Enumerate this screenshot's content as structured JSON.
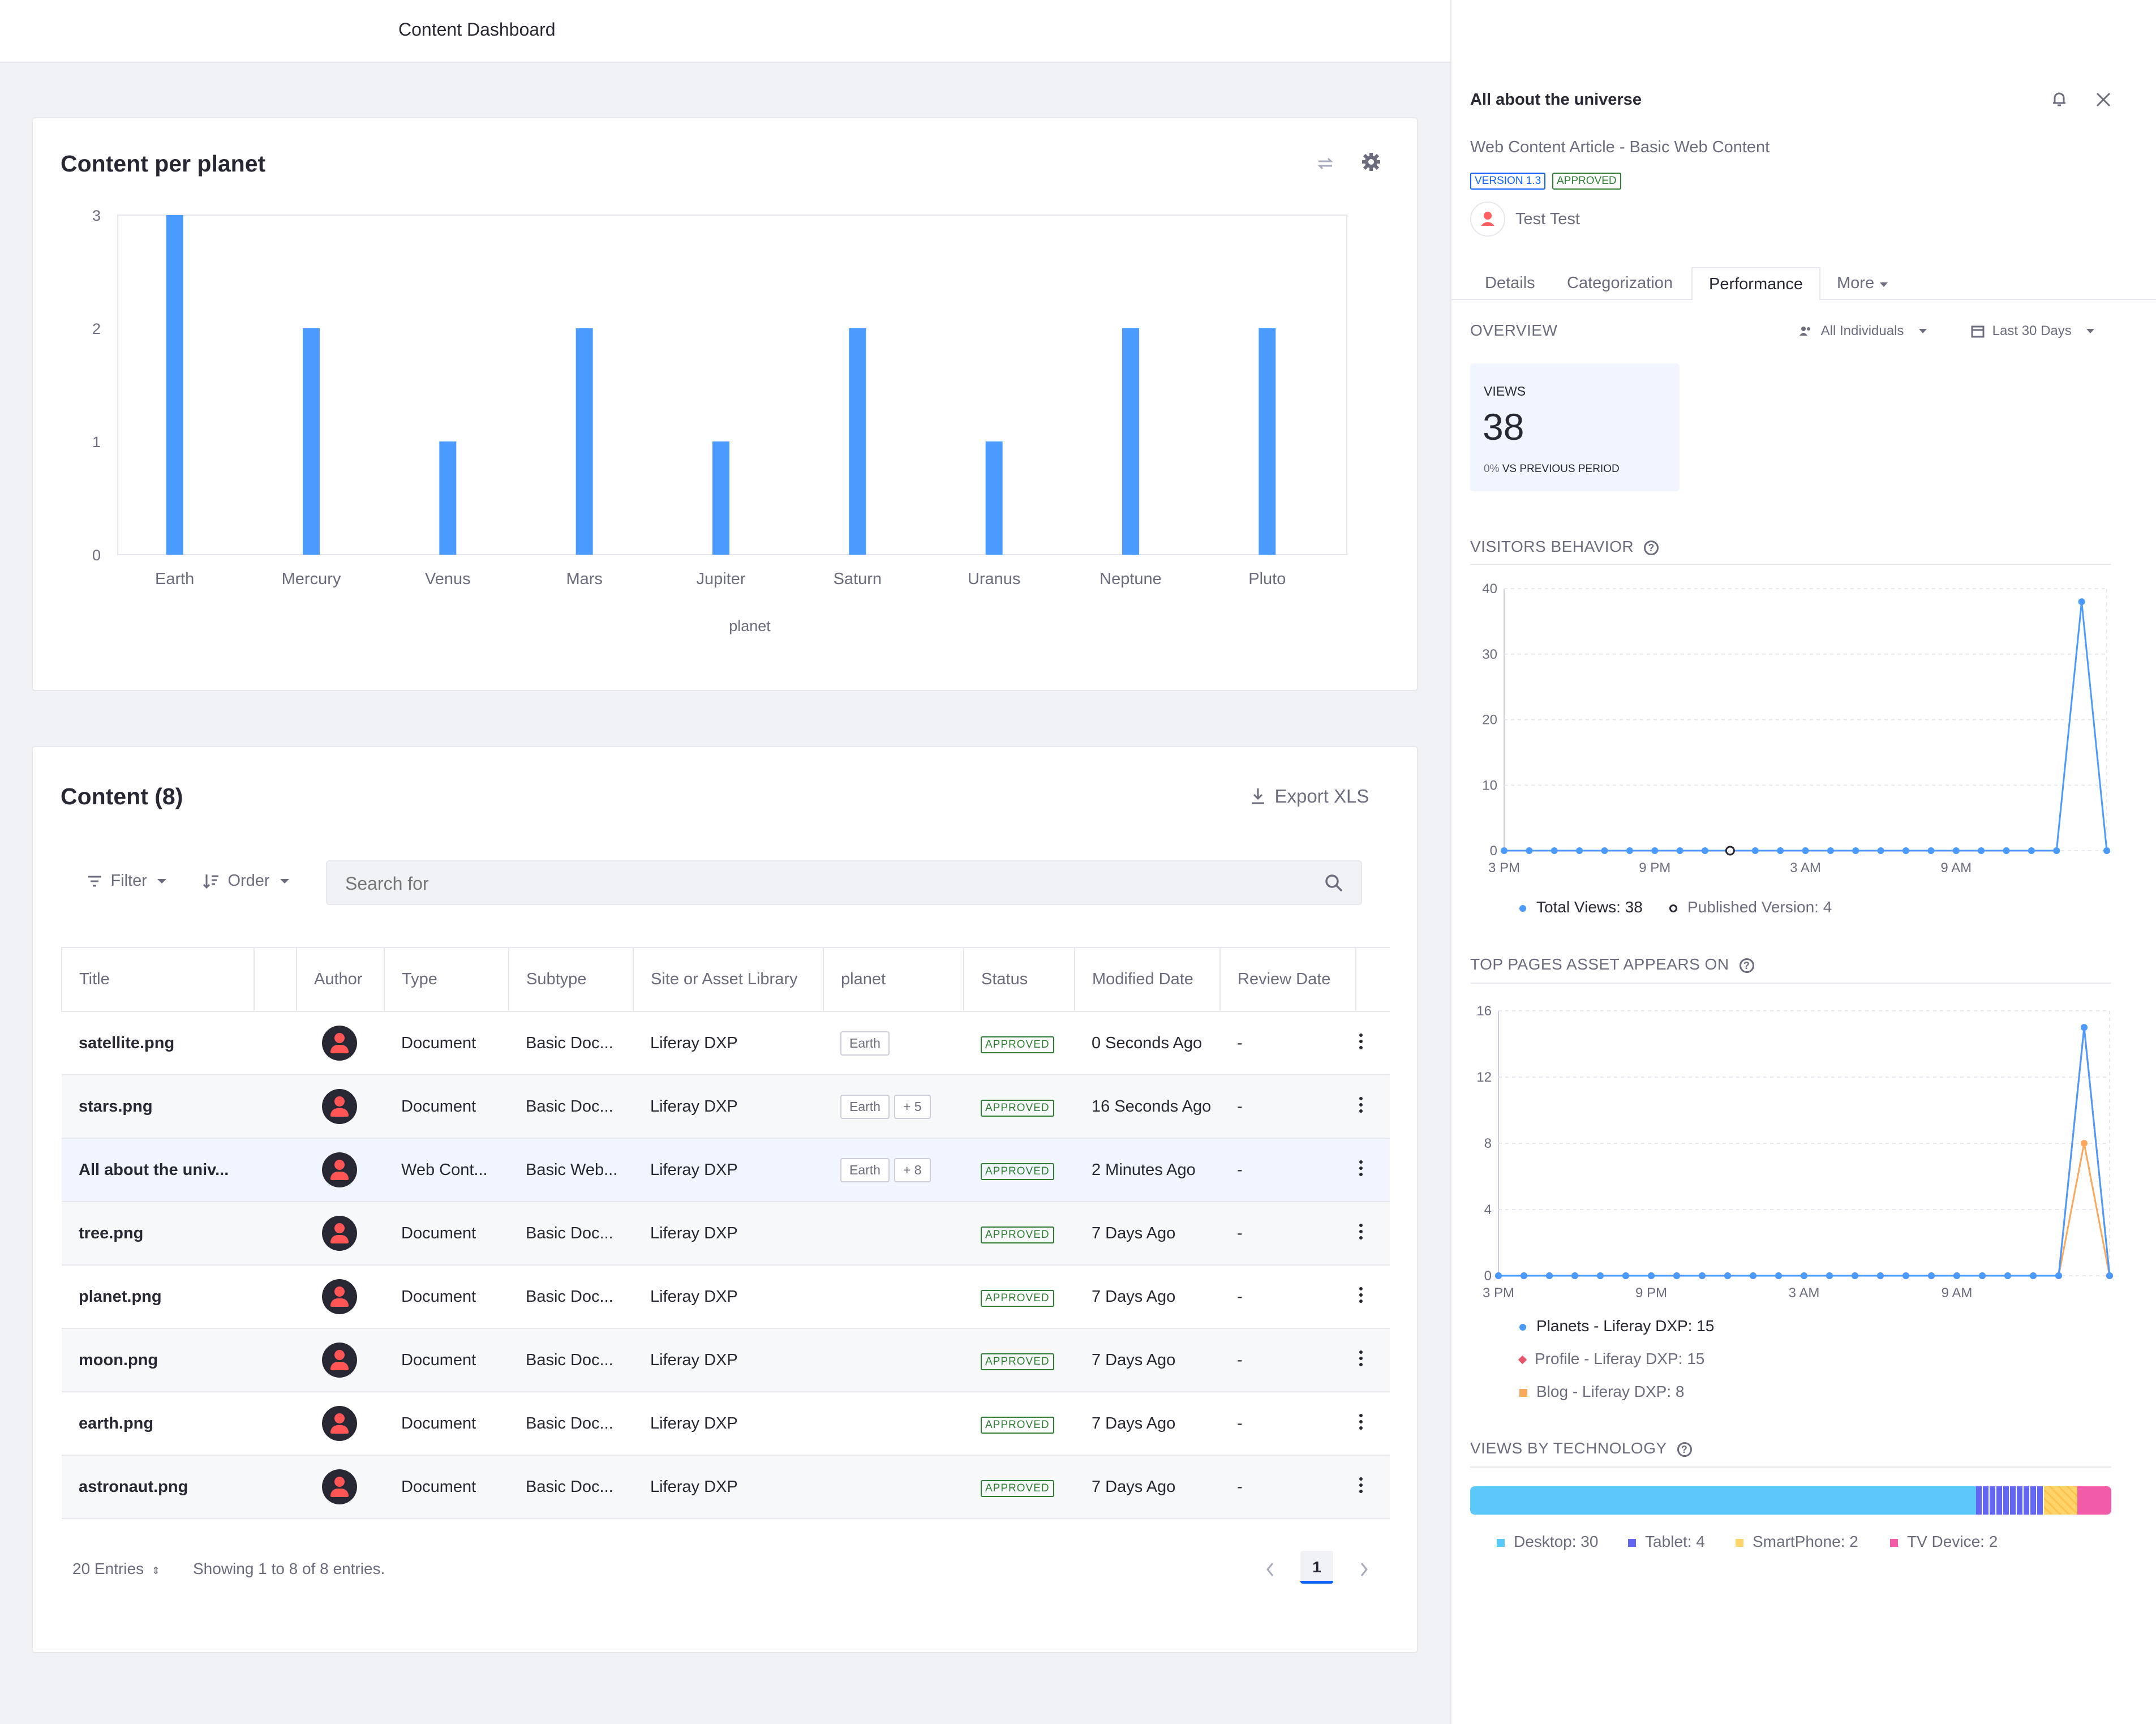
{
  "header": {
    "title": "Content Dashboard"
  },
  "chart_card": {
    "title": "Content per planet"
  },
  "chart_data": [
    {
      "type": "bar",
      "title": "Content per planet",
      "categories": [
        "Earth",
        "Mercury",
        "Venus",
        "Mars",
        "Jupiter",
        "Saturn",
        "Uranus",
        "Neptune",
        "Pluto"
      ],
      "values": [
        3,
        2,
        1,
        2,
        1,
        2,
        1,
        2,
        2
      ],
      "xlabel": "planet",
      "ylabel": "",
      "ylim": [
        0,
        3
      ],
      "yticks": [
        "3",
        "2",
        "1",
        "0"
      ],
      "color": "#4b9bff",
      "grid": false
    },
    {
      "type": "line",
      "title": "VISITORS BEHAVIOR",
      "x_ticks": [
        "3 PM",
        "9 PM",
        "3 AM",
        "9 AM"
      ],
      "yticks": [
        "40",
        "30",
        "20",
        "10",
        "0"
      ],
      "ylim": [
        0,
        40
      ],
      "series": [
        {
          "name": "Total Views: 38",
          "values": [
            0,
            0,
            0,
            0,
            0,
            0,
            0,
            0,
            0,
            0,
            0,
            0,
            0,
            0,
            0,
            0,
            0,
            0,
            0,
            0,
            0,
            0,
            0,
            38,
            0
          ],
          "color": "#4b9bff"
        }
      ],
      "published_version_index": 9,
      "legend": [
        "Total Views: 38",
        "Published Version: 4"
      ]
    },
    {
      "type": "line",
      "title": "TOP PAGES ASSET APPEARS ON",
      "x_ticks": [
        "3 PM",
        "9 PM",
        "3 AM",
        "9 AM"
      ],
      "yticks": [
        "16",
        "12",
        "8",
        "4",
        "0"
      ],
      "ylim": [
        0,
        16
      ],
      "series": [
        {
          "name": "Planets - Liferay DXP: 15",
          "values": [
            0,
            0,
            0,
            0,
            0,
            0,
            0,
            0,
            0,
            0,
            0,
            0,
            0,
            0,
            0,
            0,
            0,
            0,
            0,
            0,
            0,
            0,
            0,
            15,
            0
          ],
          "color": "#4b9bff"
        },
        {
          "name": "Profile - Liferay DXP: 15",
          "values": [
            0,
            0,
            0,
            0,
            0,
            0,
            0,
            0,
            0,
            0,
            0,
            0,
            0,
            0,
            0,
            0,
            0,
            0,
            0,
            0,
            0,
            0,
            0,
            15,
            0
          ],
          "color": "#e5566b"
        },
        {
          "name": "Blog - Liferay DXP: 8",
          "values": [
            0,
            0,
            0,
            0,
            0,
            0,
            0,
            0,
            0,
            0,
            0,
            0,
            0,
            0,
            0,
            0,
            0,
            0,
            0,
            0,
            0,
            0,
            0,
            8,
            0
          ],
          "color": "#f9a85d"
        }
      ]
    },
    {
      "type": "bar",
      "title": "VIEWS BY TECHNOLOGY",
      "categories": [
        "Desktop",
        "Tablet",
        "SmartPhone",
        "TV Device"
      ],
      "values": [
        30,
        4,
        2,
        2
      ],
      "colors": [
        "#5ac8fa",
        "#6366f1",
        "#ffd56b",
        "#f25ba8"
      ]
    }
  ],
  "content_card": {
    "title": "Content (8)",
    "export_label": "Export XLS",
    "filter_label": "Filter",
    "order_label": "Order",
    "search_placeholder": "Search for",
    "columns": [
      "Title",
      "",
      "Author",
      "Type",
      "Subtype",
      "Site or Asset Library",
      "planet",
      "Status",
      "Modified Date",
      "Review Date"
    ],
    "rows": [
      {
        "title": "satellite.png",
        "type": "Document",
        "subtype": "Basic Doc...",
        "site": "Liferay DXP",
        "tag": "Earth",
        "more": "",
        "status": "APPROVED",
        "modified": "0 Seconds Ago",
        "review": "-"
      },
      {
        "title": "stars.png",
        "type": "Document",
        "subtype": "Basic Doc...",
        "site": "Liferay DXP",
        "tag": "Earth",
        "more": "+ 5",
        "status": "APPROVED",
        "modified": "16 Seconds Ago",
        "review": "-"
      },
      {
        "title": "All about the univ...",
        "type": "Web Cont...",
        "subtype": "Basic Web...",
        "site": "Liferay DXP",
        "tag": "Earth",
        "more": "+ 8",
        "status": "APPROVED",
        "modified": "2 Minutes Ago",
        "review": "-"
      },
      {
        "title": "tree.png",
        "type": "Document",
        "subtype": "Basic Doc...",
        "site": "Liferay DXP",
        "tag": "",
        "more": "",
        "status": "APPROVED",
        "modified": "7 Days Ago",
        "review": "-"
      },
      {
        "title": "planet.png",
        "type": "Document",
        "subtype": "Basic Doc...",
        "site": "Liferay DXP",
        "tag": "",
        "more": "",
        "status": "APPROVED",
        "modified": "7 Days Ago",
        "review": "-"
      },
      {
        "title": "moon.png",
        "type": "Document",
        "subtype": "Basic Doc...",
        "site": "Liferay DXP",
        "tag": "",
        "more": "",
        "status": "APPROVED",
        "modified": "7 Days Ago",
        "review": "-"
      },
      {
        "title": "earth.png",
        "type": "Document",
        "subtype": "Basic Doc...",
        "site": "Liferay DXP",
        "tag": "",
        "more": "",
        "status": "APPROVED",
        "modified": "7 Days Ago",
        "review": "-"
      },
      {
        "title": "astronaut.png",
        "type": "Document",
        "subtype": "Basic Doc...",
        "site": "Liferay DXP",
        "tag": "",
        "more": "",
        "status": "APPROVED",
        "modified": "7 Days Ago",
        "review": "-"
      }
    ],
    "entries_label": "20 Entries",
    "showing_label": "Showing 1 to 8 of 8 entries.",
    "page": "1"
  },
  "sidebar": {
    "title": "All about the universe",
    "subtitle": "Web Content Article - Basic Web Content",
    "version_badge": "VERSION 1.3",
    "status_badge": "APPROVED",
    "author": "Test Test",
    "tabs": [
      "Details",
      "Categorization",
      "Performance",
      "More"
    ],
    "active_tab": "Performance",
    "overview_label": "OVERVIEW",
    "individuals_filter": "All Individuals",
    "period_filter": "Last 30 Days",
    "views_label": "VIEWS",
    "views_value": "38",
    "views_change": "0%",
    "views_compare": "VS PREVIOUS PERIOD",
    "visitors_title": "VISITORS BEHAVIOR",
    "visitors_legend_total": "Total Views: 38",
    "visitors_legend_published": "Published Version: 4",
    "top_pages_title": "TOP PAGES ASSET APPEARS ON",
    "top_pages_legend": [
      "Planets - Liferay DXP: 15",
      "Profile - Liferay DXP: 15",
      "Blog - Liferay DXP: 8"
    ],
    "tech_title": "VIEWS BY TECHNOLOGY",
    "tech_legend": [
      "Desktop: 30",
      "Tablet: 4",
      "SmartPhone: 2",
      "TV Device: 2"
    ]
  },
  "colors": {
    "accent": "#0b5fff",
    "bar": "#4b9bff",
    "approved": "#2e7d32",
    "avatar_icon": "#ff5f5f"
  },
  "icons": [
    "apps-grid-icon",
    "user-icon",
    "refresh-icon",
    "gear-icon",
    "download-icon",
    "filter-icon",
    "order-icon",
    "search-icon",
    "chevron-down-icon",
    "bell-icon",
    "close-icon",
    "calendar-icon",
    "users-icon",
    "help-icon",
    "kebab-icon",
    "chevron-left-icon",
    "chevron-right-icon"
  ]
}
